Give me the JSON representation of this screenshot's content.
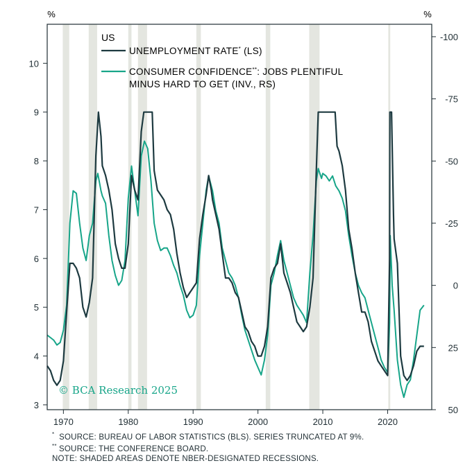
{
  "chart_data": {
    "type": "line",
    "region_label": "US",
    "left_axis": {
      "unit_label": "%",
      "range": [
        2.9,
        10.8
      ],
      "ticks": [
        3,
        4,
        5,
        6,
        7,
        8,
        9,
        10
      ]
    },
    "right_axis": {
      "unit_label": "%",
      "range": [
        50,
        -105
      ],
      "inverted": true,
      "ticks": [
        -100,
        -75,
        -50,
        -25,
        0,
        25,
        50
      ]
    },
    "x_axis": {
      "range": [
        1967.5,
        2026.8
      ],
      "ticks": [
        1970,
        1980,
        1990,
        2000,
        2010,
        2020
      ]
    },
    "legend": [
      {
        "label_main": "UNEMPLOYMENT RATE",
        "label_mark": "*",
        "label_tail": " (LS)",
        "color": "#1d3a40"
      },
      {
        "label_main": "CONSUMER CONFIDENCE",
        "label_mark": "**",
        "label_tail": ": JOBS PLENTIFUL",
        "label_line2": "MINUS HARD TO GET (INV., RS)",
        "color": "#17a589"
      }
    ],
    "recession_bands": [
      [
        1969.9,
        1970.9
      ],
      [
        1973.9,
        1975.2
      ],
      [
        1980.0,
        1980.5
      ],
      [
        1981.5,
        1982.9
      ],
      [
        1990.5,
        1991.2
      ],
      [
        2001.2,
        2001.9
      ],
      [
        2007.9,
        2009.5
      ],
      [
        2020.1,
        2020.4
      ]
    ],
    "series": [
      {
        "name": "Unemployment rate",
        "axis": "left",
        "color": "#1d3a40",
        "truncated_at": 9,
        "points": [
          [
            1967.5,
            3.8
          ],
          [
            1968.0,
            3.7
          ],
          [
            1968.5,
            3.5
          ],
          [
            1969.0,
            3.4
          ],
          [
            1969.5,
            3.5
          ],
          [
            1970.0,
            3.9
          ],
          [
            1970.5,
            4.9
          ],
          [
            1971.0,
            5.9
          ],
          [
            1971.5,
            5.9
          ],
          [
            1972.0,
            5.8
          ],
          [
            1972.5,
            5.6
          ],
          [
            1973.0,
            5.0
          ],
          [
            1973.5,
            4.8
          ],
          [
            1974.0,
            5.1
          ],
          [
            1974.5,
            5.6
          ],
          [
            1975.0,
            8.1
          ],
          [
            1975.4,
            9.0
          ],
          [
            1975.8,
            8.5
          ],
          [
            1976.0,
            7.9
          ],
          [
            1976.5,
            7.7
          ],
          [
            1977.0,
            7.4
          ],
          [
            1977.5,
            7.0
          ],
          [
            1978.0,
            6.3
          ],
          [
            1978.5,
            6.0
          ],
          [
            1979.0,
            5.8
          ],
          [
            1979.5,
            5.8
          ],
          [
            1980.0,
            6.3
          ],
          [
            1980.5,
            7.7
          ],
          [
            1981.0,
            7.4
          ],
          [
            1981.5,
            7.2
          ],
          [
            1982.0,
            8.6
          ],
          [
            1982.4,
            9.0
          ],
          [
            1983.7,
            9.0
          ],
          [
            1984.0,
            7.8
          ],
          [
            1984.5,
            7.4
          ],
          [
            1985.0,
            7.3
          ],
          [
            1985.5,
            7.2
          ],
          [
            1986.0,
            7.0
          ],
          [
            1986.5,
            6.9
          ],
          [
            1987.0,
            6.6
          ],
          [
            1987.5,
            6.1
          ],
          [
            1988.0,
            5.7
          ],
          [
            1988.5,
            5.4
          ],
          [
            1989.0,
            5.2
          ],
          [
            1989.5,
            5.3
          ],
          [
            1990.0,
            5.4
          ],
          [
            1990.5,
            5.5
          ],
          [
            1991.0,
            6.4
          ],
          [
            1991.5,
            6.9
          ],
          [
            1992.0,
            7.3
          ],
          [
            1992.4,
            7.7
          ],
          [
            1992.8,
            7.4
          ],
          [
            1993.0,
            7.2
          ],
          [
            1993.5,
            6.9
          ],
          [
            1994.0,
            6.6
          ],
          [
            1994.5,
            6.1
          ],
          [
            1995.0,
            5.6
          ],
          [
            1995.5,
            5.6
          ],
          [
            1996.0,
            5.5
          ],
          [
            1996.5,
            5.3
          ],
          [
            1997.0,
            5.2
          ],
          [
            1997.5,
            4.9
          ],
          [
            1998.0,
            4.6
          ],
          [
            1998.5,
            4.5
          ],
          [
            1999.0,
            4.3
          ],
          [
            1999.5,
            4.2
          ],
          [
            2000.0,
            4.0
          ],
          [
            2000.5,
            4.0
          ],
          [
            2001.0,
            4.2
          ],
          [
            2001.5,
            4.6
          ],
          [
            2002.0,
            5.6
          ],
          [
            2002.5,
            5.8
          ],
          [
            2003.0,
            5.9
          ],
          [
            2003.5,
            6.3
          ],
          [
            2004.0,
            5.7
          ],
          [
            2004.5,
            5.5
          ],
          [
            2005.0,
            5.3
          ],
          [
            2005.5,
            5.0
          ],
          [
            2006.0,
            4.7
          ],
          [
            2006.5,
            4.6
          ],
          [
            2007.0,
            4.5
          ],
          [
            2007.5,
            4.6
          ],
          [
            2008.0,
            5.0
          ],
          [
            2008.5,
            5.6
          ],
          [
            2009.0,
            7.8
          ],
          [
            2009.3,
            9.0
          ],
          [
            2011.9,
            9.0
          ],
          [
            2012.2,
            8.3
          ],
          [
            2012.5,
            8.2
          ],
          [
            2013.0,
            7.9
          ],
          [
            2013.5,
            7.4
          ],
          [
            2014.0,
            6.6
          ],
          [
            2014.5,
            6.2
          ],
          [
            2015.0,
            5.7
          ],
          [
            2015.5,
            5.3
          ],
          [
            2016.0,
            4.9
          ],
          [
            2016.5,
            4.9
          ],
          [
            2017.0,
            4.7
          ],
          [
            2017.5,
            4.3
          ],
          [
            2018.0,
            4.1
          ],
          [
            2018.5,
            3.9
          ],
          [
            2019.0,
            3.8
          ],
          [
            2019.5,
            3.7
          ],
          [
            2020.0,
            3.6
          ],
          [
            2020.3,
            6.0
          ],
          [
            2020.35,
            9.0
          ],
          [
            2020.6,
            9.0
          ],
          [
            2020.9,
            6.9
          ],
          [
            2021.0,
            6.4
          ],
          [
            2021.5,
            5.9
          ],
          [
            2022.0,
            4.0
          ],
          [
            2022.5,
            3.6
          ],
          [
            2023.0,
            3.5
          ],
          [
            2023.5,
            3.6
          ],
          [
            2024.0,
            3.8
          ],
          [
            2024.5,
            4.1
          ],
          [
            2025.0,
            4.2
          ],
          [
            2025.6,
            4.2
          ]
        ]
      },
      {
        "name": "Consumer confidence: jobs plentiful minus hard to get (inverted)",
        "axis": "right",
        "color": "#17a589",
        "points": [
          [
            1967.5,
            20
          ],
          [
            1968.0,
            21
          ],
          [
            1968.5,
            22
          ],
          [
            1969.0,
            24
          ],
          [
            1969.5,
            23
          ],
          [
            1970.0,
            18
          ],
          [
            1970.5,
            8
          ],
          [
            1971.0,
            -25
          ],
          [
            1971.5,
            -38
          ],
          [
            1972.0,
            -37
          ],
          [
            1972.5,
            -25
          ],
          [
            1973.0,
            -15
          ],
          [
            1973.5,
            -10
          ],
          [
            1974.0,
            -20
          ],
          [
            1974.5,
            -25
          ],
          [
            1975.0,
            -42
          ],
          [
            1975.3,
            -45
          ],
          [
            1975.8,
            -38
          ],
          [
            1976.0,
            -36
          ],
          [
            1976.5,
            -33
          ],
          [
            1977.0,
            -20
          ],
          [
            1977.5,
            -10
          ],
          [
            1978.0,
            -4
          ],
          [
            1978.5,
            0
          ],
          [
            1979.0,
            -2
          ],
          [
            1979.5,
            -10
          ],
          [
            1980.0,
            -35
          ],
          [
            1980.5,
            -48
          ],
          [
            1981.0,
            -38
          ],
          [
            1981.5,
            -28
          ],
          [
            1982.0,
            -52
          ],
          [
            1982.5,
            -58
          ],
          [
            1983.0,
            -55
          ],
          [
            1983.5,
            -42
          ],
          [
            1984.0,
            -25
          ],
          [
            1984.5,
            -18
          ],
          [
            1985.0,
            -14
          ],
          [
            1985.5,
            -15
          ],
          [
            1986.0,
            -15
          ],
          [
            1986.5,
            -12
          ],
          [
            1987.0,
            -8
          ],
          [
            1987.5,
            -5
          ],
          [
            1988.0,
            0
          ],
          [
            1988.5,
            4
          ],
          [
            1989.0,
            10
          ],
          [
            1989.5,
            13
          ],
          [
            1990.0,
            12
          ],
          [
            1990.5,
            8
          ],
          [
            1991.0,
            -12
          ],
          [
            1991.5,
            -25
          ],
          [
            1992.0,
            -38
          ],
          [
            1992.4,
            -44
          ],
          [
            1992.8,
            -40
          ],
          [
            1993.0,
            -38
          ],
          [
            1993.5,
            -30
          ],
          [
            1994.0,
            -25
          ],
          [
            1994.5,
            -15
          ],
          [
            1995.0,
            -10
          ],
          [
            1995.5,
            -5
          ],
          [
            1996.0,
            -3
          ],
          [
            1996.5,
            0
          ],
          [
            1997.0,
            5
          ],
          [
            1997.5,
            12
          ],
          [
            1998.0,
            18
          ],
          [
            1998.5,
            22
          ],
          [
            1999.0,
            26
          ],
          [
            1999.5,
            30
          ],
          [
            2000.0,
            33
          ],
          [
            2000.5,
            36
          ],
          [
            2001.0,
            30
          ],
          [
            2001.5,
            20
          ],
          [
            2002.0,
            0
          ],
          [
            2002.5,
            -5
          ],
          [
            2003.0,
            -12
          ],
          [
            2003.5,
            -18
          ],
          [
            2004.0,
            -10
          ],
          [
            2004.5,
            -5
          ],
          [
            2005.0,
            0
          ],
          [
            2005.5,
            5
          ],
          [
            2006.0,
            8
          ],
          [
            2006.5,
            10
          ],
          [
            2007.0,
            12
          ],
          [
            2007.5,
            15
          ],
          [
            2008.0,
            -5
          ],
          [
            2008.5,
            -20
          ],
          [
            2009.0,
            -42
          ],
          [
            2009.3,
            -47
          ],
          [
            2009.8,
            -43
          ],
          [
            2010.0,
            -45
          ],
          [
            2010.5,
            -44
          ],
          [
            2011.0,
            -42
          ],
          [
            2011.5,
            -44
          ],
          [
            2012.0,
            -40
          ],
          [
            2012.5,
            -38
          ],
          [
            2013.0,
            -35
          ],
          [
            2013.5,
            -30
          ],
          [
            2014.0,
            -20
          ],
          [
            2014.5,
            -12
          ],
          [
            2015.0,
            -5
          ],
          [
            2015.5,
            0
          ],
          [
            2016.0,
            3
          ],
          [
            2016.5,
            5
          ],
          [
            2017.0,
            10
          ],
          [
            2017.5,
            15
          ],
          [
            2018.0,
            20
          ],
          [
            2018.5,
            25
          ],
          [
            2019.0,
            30
          ],
          [
            2019.5,
            33
          ],
          [
            2020.0,
            35
          ],
          [
            2020.3,
            15
          ],
          [
            2020.4,
            -20
          ],
          [
            2020.7,
            0
          ],
          [
            2021.0,
            10
          ],
          [
            2021.5,
            30
          ],
          [
            2022.0,
            40
          ],
          [
            2022.5,
            45
          ],
          [
            2023.0,
            40
          ],
          [
            2023.5,
            38
          ],
          [
            2024.0,
            30
          ],
          [
            2024.5,
            20
          ],
          [
            2025.0,
            10
          ],
          [
            2025.6,
            8
          ]
        ]
      }
    ],
    "watermark": "© BCA Research 2025",
    "footnotes": [
      {
        "mark": "*",
        "text": "SOURCE: BUREAU OF LABOR STATISTICS (BLS). SERIES TRUNCATED AT 9%."
      },
      {
        "mark": "**",
        "text": "SOURCE: THE CONFERENCE BOARD."
      },
      {
        "mark": "",
        "text": "NOTE: SHADED AREAS DENOTE NBER-DESIGNATED RECESSIONS."
      }
    ]
  },
  "colors": {
    "axis": "#1f2d33",
    "recession": "#e4e6e0",
    "watermark": "#17a589"
  }
}
